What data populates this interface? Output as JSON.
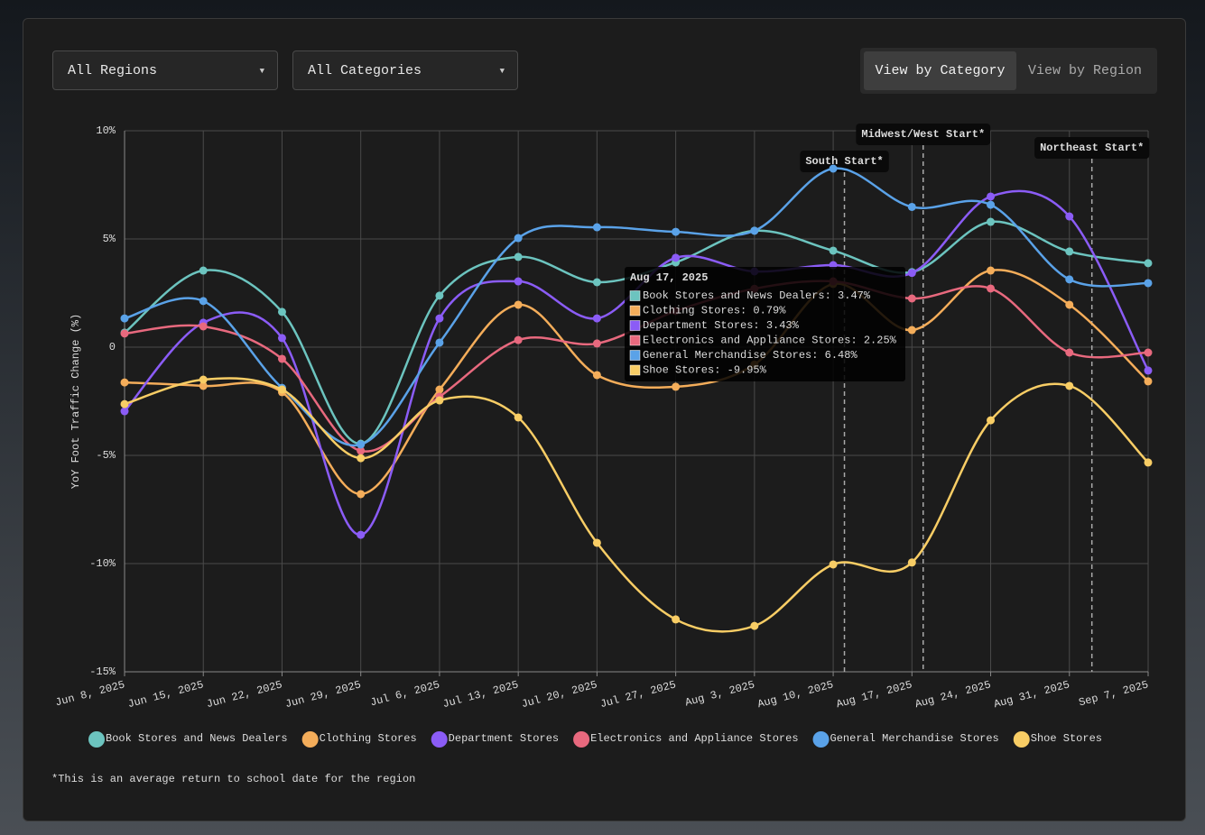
{
  "controls": {
    "region": "All Regions",
    "category": "All Categories",
    "view_options": [
      "View by Category",
      "View by Region"
    ],
    "active_view": 0
  },
  "chart_data": {
    "type": "line",
    "y_label": "YoY Foot Traffic Change (%)",
    "categories": [
      "Jun 8, 2025",
      "Jun 15, 2025",
      "Jun 22, 2025",
      "Jun 29, 2025",
      "Jul 6, 2025",
      "Jul 13, 2025",
      "Jul 20, 2025",
      "Jul 27, 2025",
      "Aug 3, 2025",
      "Aug 10, 2025",
      "Aug 17, 2025",
      "Aug 24, 2025",
      "Aug 31, 2025",
      "Sep 7, 2025"
    ],
    "series": [
      {
        "name": "Book Stores and News Dealers",
        "color": "#6cc4bf",
        "values": [
          0.67,
          3.54,
          1.63,
          -4.46,
          2.38,
          4.17,
          3.0,
          3.92,
          5.38,
          4.46,
          3.47,
          5.79,
          4.42,
          3.88
        ]
      },
      {
        "name": "Clothing Stores",
        "color": "#f4ad5a",
        "values": [
          -1.63,
          -1.79,
          -2.08,
          -6.79,
          -1.96,
          1.96,
          -1.29,
          -1.83,
          -0.8,
          2.92,
          0.79,
          3.54,
          1.96,
          -1.58
        ]
      },
      {
        "name": "Department Stores",
        "color": "#8b5cf6",
        "values": [
          -2.96,
          1.13,
          0.42,
          -8.67,
          1.33,
          3.04,
          1.33,
          4.13,
          3.5,
          3.79,
          3.43,
          6.96,
          6.04,
          -1.08
        ]
      },
      {
        "name": "Electronics and Appliance Stores",
        "color": "#e8697e",
        "values": [
          0.63,
          0.96,
          -0.54,
          -4.79,
          -2.29,
          0.33,
          0.17,
          1.67,
          2.7,
          3.04,
          2.25,
          2.71,
          -0.25,
          -0.25
        ]
      },
      {
        "name": "General Merchandise Stores",
        "color": "#5aa2e8",
        "values": [
          1.33,
          2.13,
          -1.88,
          -4.5,
          0.21,
          5.04,
          5.54,
          5.33,
          5.38,
          8.25,
          6.48,
          6.58,
          3.13,
          2.96
        ]
      },
      {
        "name": "Shoe Stores",
        "color": "#f8cd65",
        "values": [
          -2.63,
          -1.5,
          -1.96,
          -5.13,
          -2.46,
          -3.25,
          -9.04,
          -12.58,
          -12.88,
          -10.04,
          -9.95,
          -3.38,
          -1.79,
          -5.33
        ]
      }
    ],
    "ylim": [
      -15,
      10
    ],
    "yticks": [
      {
        "value": 10,
        "label": "10%"
      },
      {
        "value": 5,
        "label": "5%"
      },
      0,
      {
        "value": -5,
        "label": "-5%"
      },
      {
        "value": -10,
        "label": "-10%"
      },
      {
        "value": -15,
        "label": "-15%"
      }
    ],
    "grid": true,
    "annotations": [
      {
        "label": "South Start*",
        "date": "Aug 11, 2025"
      },
      {
        "label": "Midwest/West Start*",
        "date": "Aug 18, 2025"
      },
      {
        "label": "Northeast Start*",
        "date": "Sep 2, 2025"
      }
    ],
    "tooltip": {
      "title": "Aug 17, 2025",
      "rows": [
        "Book Stores and News Dealers: 3.47%",
        "Clothing Stores: 0.79%",
        "Department Stores: 3.43%",
        "Electronics and Appliance Stores: 2.25%",
        "General Merchandise Stores: 6.48%",
        "Shoe Stores: -9.95%"
      ]
    },
    "footnote": "*This is an average return to school date for the region"
  }
}
